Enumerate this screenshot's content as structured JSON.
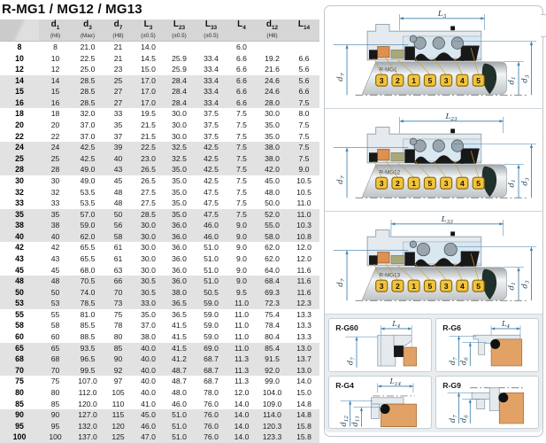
{
  "title": "R-MG1 / MG12 / MG13",
  "table": {
    "headers": [
      {
        "main": "",
        "sub": "",
        "tol": ""
      },
      {
        "main": "d",
        "sub": "1",
        "tol": "(h6)"
      },
      {
        "main": "d",
        "sub": "3",
        "tol": "(Max)"
      },
      {
        "main": "d",
        "sub": "7",
        "tol": "(H8)"
      },
      {
        "main": "L",
        "sub": "3",
        "tol": "(±0.5)"
      },
      {
        "main": "L",
        "sub": "23",
        "tol": "(±0.5)"
      },
      {
        "main": "L",
        "sub": "33",
        "tol": "(±0.5)"
      },
      {
        "main": "L",
        "sub": "4",
        "tol": ""
      },
      {
        "main": "d",
        "sub": "12",
        "tol": "(H8)"
      },
      {
        "main": "L",
        "sub": "14",
        "tol": ""
      }
    ],
    "rows": [
      [
        "8",
        "8",
        "21.0",
        "21",
        "14.0",
        "",
        "",
        "6.0",
        "",
        ""
      ],
      [
        "10",
        "10",
        "22.5",
        "21",
        "14.5",
        "25.9",
        "33.4",
        "6.6",
        "19.2",
        "6.6"
      ],
      [
        "12",
        "12",
        "25.0",
        "23",
        "15.0",
        "25.9",
        "33.4",
        "6.6",
        "21.6",
        "5.6"
      ],
      [
        "14",
        "14",
        "28.5",
        "25",
        "17.0",
        "28.4",
        "33.4",
        "6.6",
        "24.6",
        "5.6"
      ],
      [
        "15",
        "15",
        "28.5",
        "27",
        "17.0",
        "28.4",
        "33.4",
        "6.6",
        "24.6",
        "6.6"
      ],
      [
        "16",
        "16",
        "28.5",
        "27",
        "17.0",
        "28.4",
        "33.4",
        "6.6",
        "28.0",
        "7.5"
      ],
      [
        "18",
        "18",
        "32.0",
        "33",
        "19.5",
        "30.0",
        "37.5",
        "7.5",
        "30.0",
        "8.0"
      ],
      [
        "20",
        "20",
        "37.0",
        "35",
        "21.5",
        "30.0",
        "37.5",
        "7.5",
        "35.0",
        "7.5"
      ],
      [
        "22",
        "22",
        "37.0",
        "37",
        "21.5",
        "30.0",
        "37.5",
        "7.5",
        "35.0",
        "7.5"
      ],
      [
        "24",
        "24",
        "42.5",
        "39",
        "22.5",
        "32.5",
        "42.5",
        "7.5",
        "38.0",
        "7.5"
      ],
      [
        "25",
        "25",
        "42.5",
        "40",
        "23.0",
        "32.5",
        "42.5",
        "7.5",
        "38.0",
        "7.5"
      ],
      [
        "28",
        "28",
        "49.0",
        "43",
        "26.5",
        "35.0",
        "42.5",
        "7.5",
        "42.0",
        "9.0"
      ],
      [
        "30",
        "30",
        "49.0",
        "45",
        "26.5",
        "35.0",
        "42.5",
        "7.5",
        "45.0",
        "10.5"
      ],
      [
        "32",
        "32",
        "53.5",
        "48",
        "27.5",
        "35.0",
        "47.5",
        "7.5",
        "48.0",
        "10.5"
      ],
      [
        "33",
        "33",
        "53.5",
        "48",
        "27.5",
        "35.0",
        "47.5",
        "7.5",
        "50.0",
        "11.0"
      ],
      [
        "35",
        "35",
        "57.0",
        "50",
        "28.5",
        "35.0",
        "47.5",
        "7.5",
        "52.0",
        "11.0"
      ],
      [
        "38",
        "38",
        "59.0",
        "56",
        "30.0",
        "36.0",
        "46.0",
        "9.0",
        "55.0",
        "10.3"
      ],
      [
        "40",
        "40",
        "62.0",
        "58",
        "30.0",
        "36.0",
        "46.0",
        "9.0",
        "58.0",
        "10.8"
      ],
      [
        "42",
        "42",
        "65.5",
        "61",
        "30.0",
        "36.0",
        "51.0",
        "9.0",
        "62.0",
        "12.0"
      ],
      [
        "43",
        "43",
        "65.5",
        "61",
        "30.0",
        "36.0",
        "51.0",
        "9.0",
        "62.0",
        "12.0"
      ],
      [
        "45",
        "45",
        "68.0",
        "63",
        "30.0",
        "36.0",
        "51.0",
        "9.0",
        "64.0",
        "11.6"
      ],
      [
        "48",
        "48",
        "70.5",
        "66",
        "30.5",
        "36.0",
        "51.0",
        "9.0",
        "68.4",
        "11.6"
      ],
      [
        "50",
        "50",
        "74.0",
        "70",
        "30.5",
        "38.0",
        "50.5",
        "9.5",
        "69.3",
        "11.6"
      ],
      [
        "53",
        "53",
        "78.5",
        "73",
        "33.0",
        "36.5",
        "59.0",
        "11.0",
        "72.3",
        "12.3"
      ],
      [
        "55",
        "55",
        "81.0",
        "75",
        "35.0",
        "36.5",
        "59.0",
        "11.0",
        "75.4",
        "13.3"
      ],
      [
        "58",
        "58",
        "85.5",
        "78",
        "37.0",
        "41.5",
        "59.0",
        "11.0",
        "78.4",
        "13.3"
      ],
      [
        "60",
        "60",
        "88.5",
        "80",
        "38.0",
        "41.5",
        "59.0",
        "11.0",
        "80.4",
        "13.3"
      ],
      [
        "65",
        "65",
        "93.5",
        "85",
        "40.0",
        "41.5",
        "69.0",
        "11.0",
        "85.4",
        "13.0"
      ],
      [
        "68",
        "68",
        "96.5",
        "90",
        "40.0",
        "41.2",
        "68.7",
        "11.3",
        "91.5",
        "13.7"
      ],
      [
        "70",
        "70",
        "99.5",
        "92",
        "40.0",
        "48.7",
        "68.7",
        "11.3",
        "92.0",
        "13.0"
      ],
      [
        "75",
        "75",
        "107.0",
        "97",
        "40.0",
        "48.7",
        "68.7",
        "11.3",
        "99.0",
        "14.0"
      ],
      [
        "80",
        "80",
        "112.0",
        "105",
        "40.0",
        "48.0",
        "78.0",
        "12.0",
        "104.0",
        "15.0"
      ],
      [
        "85",
        "85",
        "120.0",
        "110",
        "41.0",
        "46.0",
        "76.0",
        "14.0",
        "109.0",
        "14.8"
      ],
      [
        "90",
        "90",
        "127.0",
        "115",
        "45.0",
        "51.0",
        "76.0",
        "14.0",
        "114.0",
        "14.8"
      ],
      [
        "95",
        "95",
        "132.0",
        "120",
        "46.0",
        "51.0",
        "76.0",
        "14.0",
        "120.3",
        "15.8"
      ],
      [
        "100",
        "100",
        "137.0",
        "125",
        "47.0",
        "51.0",
        "76.0",
        "14.0",
        "123.3",
        "15.8"
      ]
    ]
  },
  "diagrams": [
    {
      "id": "mg1",
      "name": "R-MG1",
      "top_dim": {
        "main": "L",
        "sub": "3"
      },
      "left_dim": {
        "main": "d",
        "sub": "7"
      },
      "right_dims": [
        {
          "main": "d",
          "sub": "1"
        },
        {
          "main": "d",
          "sub": "3"
        }
      ],
      "callouts": [
        "3",
        "2",
        "1",
        "5",
        "3",
        "4",
        "5"
      ]
    },
    {
      "id": "mg12",
      "name": "R-MG12",
      "top_dim": {
        "main": "L",
        "sub": "23"
      },
      "left_dim": {
        "main": "d",
        "sub": "7"
      },
      "right_dims": [
        {
          "main": "d",
          "sub": "1"
        },
        {
          "main": "d",
          "sub": "3"
        }
      ],
      "callouts": [
        "3",
        "2",
        "1",
        "5",
        "3",
        "4",
        "5"
      ]
    },
    {
      "id": "mg13",
      "name": "R-MG13",
      "top_dim": {
        "main": "L",
        "sub": "33"
      },
      "left_dim": {
        "main": "d",
        "sub": "7"
      },
      "right_dims": [
        {
          "main": "d",
          "sub": "1"
        },
        {
          "main": "d",
          "sub": "3"
        }
      ],
      "callouts": [
        "3",
        "2",
        "1",
        "5",
        "3",
        "4",
        "5"
      ]
    }
  ],
  "seats": [
    {
      "id": "g60",
      "name": "R-G60",
      "top_dim": {
        "main": "L",
        "sub": "4"
      },
      "left_dims": [
        {
          "main": "d",
          "sub": "7"
        }
      ]
    },
    {
      "id": "g6",
      "name": "R-G6",
      "top_dim": {
        "main": "L",
        "sub": "4"
      },
      "left_dims": [
        {
          "main": "d",
          "sub": "7"
        },
        {
          "main": "d",
          "sub": "6"
        }
      ]
    },
    {
      "id": "g4",
      "name": "R-G4",
      "top_dim": {
        "main": "L",
        "sub": "14"
      },
      "left_dims": [
        {
          "main": "d",
          "sub": "12"
        },
        {
          "main": "d",
          "sub": "11"
        }
      ]
    },
    {
      "id": "g9",
      "name": "R-G9",
      "top_dim": null,
      "left_dims": [
        {
          "main": "d",
          "sub": "7"
        },
        {
          "main": "d",
          "sub": "6"
        }
      ]
    }
  ],
  "colors": {
    "dimension_line": "#3f7fae",
    "callout_fill": "#f2c33d",
    "callout_border": "#8a6a10",
    "leader_line": "#c9a23a",
    "seal_dark": "#181818",
    "elastomer_orange": "#dd9050",
    "seat_orange": "#e2a265",
    "olive": "#a9a87b",
    "spring_gray": "#9aa5ad",
    "housing_fill": "#e4eaee",
    "housing_inner": "#d9e7f1",
    "housing_stroke": "#8d9aa4",
    "shaft_end": "#20302b",
    "header_bg": "#d6d6d6",
    "stripe_bg": "#e2e2e2",
    "panel_border": "#bcc6cd"
  }
}
